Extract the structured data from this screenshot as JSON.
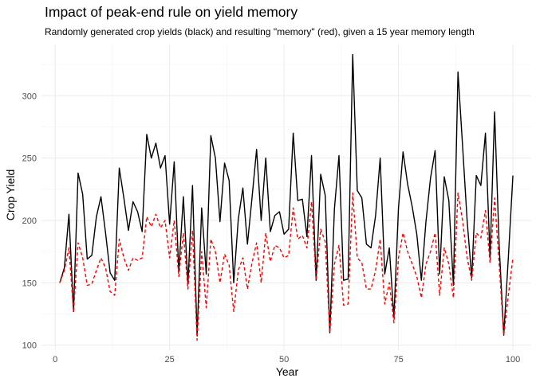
{
  "chart_data": {
    "type": "line",
    "title": "Impact of peak-end rule on yield memory",
    "subtitle": "Randomly generated crop yields (black) and resulting \"memory\" (red), given a 15 year memory length",
    "xlabel": "Year",
    "ylabel": "Crop Yield",
    "xlim": [
      -3,
      104
    ],
    "ylim": [
      96,
      341
    ],
    "xticks": [
      0,
      25,
      50,
      75,
      100
    ],
    "yticks": [
      100,
      150,
      200,
      250,
      300
    ],
    "grid": true,
    "legend": "none",
    "x": [
      1,
      2,
      3,
      4,
      5,
      6,
      7,
      8,
      9,
      10,
      11,
      12,
      13,
      14,
      15,
      16,
      17,
      18,
      19,
      20,
      21,
      22,
      23,
      24,
      25,
      26,
      27,
      28,
      29,
      30,
      31,
      32,
      33,
      34,
      35,
      36,
      37,
      38,
      39,
      40,
      41,
      42,
      43,
      44,
      45,
      46,
      47,
      48,
      49,
      50,
      51,
      52,
      53,
      54,
      55,
      56,
      57,
      58,
      59,
      60,
      61,
      62,
      63,
      64,
      65,
      66,
      67,
      68,
      69,
      70,
      71,
      72,
      73,
      74,
      75,
      76,
      77,
      78,
      79,
      80,
      81,
      82,
      83,
      84,
      85,
      86,
      87,
      88,
      89,
      90,
      91,
      92,
      93,
      94,
      95,
      96,
      97,
      98,
      99,
      100
    ],
    "series": [
      {
        "color": "#000000",
        "style": "solid",
        "values": [
          150,
          162,
          205,
          127,
          238,
          221,
          169,
          172,
          203,
          219,
          190,
          158,
          152,
          242,
          218,
          192,
          215,
          207,
          191,
          269,
          250,
          262,
          242,
          252,
          197,
          247,
          159,
          219,
          149,
          228,
          108,
          210,
          157,
          268,
          250,
          199,
          246,
          232,
          150,
          201,
          226,
          181,
          218,
          257,
          200,
          250,
          191,
          204,
          207,
          189,
          193,
          270,
          216,
          217,
          187,
          252,
          152,
          237,
          220,
          110,
          209,
          252,
          152,
          153,
          333,
          224,
          218,
          181,
          178,
          204,
          250,
          157,
          178,
          122,
          210,
          255,
          229,
          211,
          189,
          152,
          199,
          234,
          256,
          157,
          235,
          216,
          148,
          319,
          260,
          200,
          154,
          236,
          228,
          270,
          170,
          287,
          180,
          108,
          170,
          236
        ]
      },
      {
        "color": "#ff0000",
        "style": "dashed",
        "values": [
          150,
          160,
          178,
          127,
          182,
          170,
          148,
          149,
          160,
          170,
          162,
          143,
          140,
          185,
          170,
          160,
          170,
          168,
          170,
          203,
          195,
          205,
          194,
          200,
          170,
          200,
          155,
          190,
          145,
          192,
          104,
          175,
          130,
          185,
          175,
          150,
          173,
          164,
          127,
          160,
          170,
          145,
          166,
          182,
          150,
          190,
          167,
          180,
          178,
          170,
          172,
          210,
          185,
          188,
          178,
          215,
          152,
          193,
          183,
          110,
          165,
          180,
          132,
          133,
          222,
          170,
          166,
          145,
          145,
          160,
          185,
          133,
          150,
          118,
          170,
          190,
          175,
          165,
          155,
          138,
          165,
          175,
          190,
          140,
          178,
          165,
          138,
          222,
          200,
          170,
          152,
          190,
          186,
          208,
          166,
          218,
          165,
          108,
          140,
          170
        ]
      }
    ]
  }
}
